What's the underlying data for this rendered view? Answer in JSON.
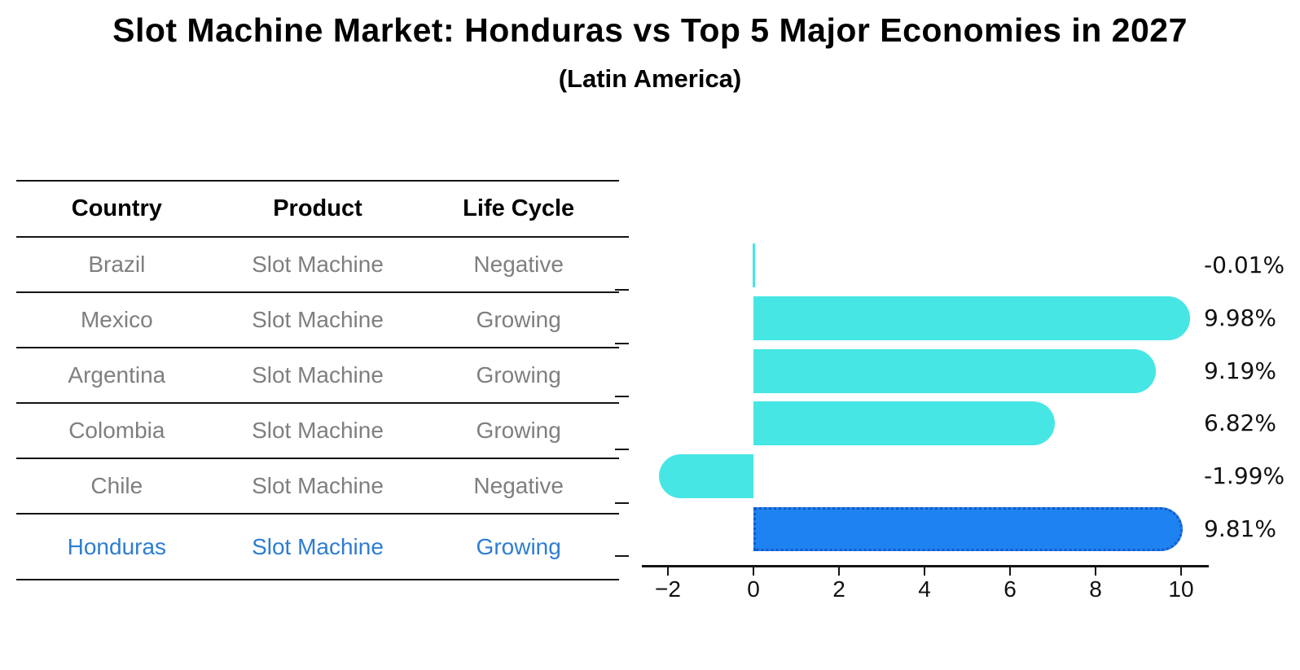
{
  "title": "Slot Machine Market: Honduras vs Top 5 Major Economies in 2027",
  "subtitle": "(Latin America)",
  "table": {
    "headers": [
      "Country",
      "Product",
      "Life Cycle"
    ],
    "rows": [
      {
        "country": "Brazil",
        "product": "Slot Machine",
        "life_cycle": "Negative",
        "highlight": false
      },
      {
        "country": "Mexico",
        "product": "Slot Machine",
        "life_cycle": "Growing",
        "highlight": false
      },
      {
        "country": "Argentina",
        "product": "Slot Machine",
        "life_cycle": "Growing",
        "highlight": false
      },
      {
        "country": "Colombia",
        "product": "Slot Machine",
        "life_cycle": "Growing",
        "highlight": false
      },
      {
        "country": "Chile",
        "product": "Slot Machine",
        "life_cycle": "Negative",
        "highlight": false
      },
      {
        "country": "Honduras",
        "product": "Slot Machine",
        "life_cycle": "Growing",
        "highlight": true
      }
    ]
  },
  "chart_data": {
    "type": "bar",
    "orientation": "horizontal",
    "categories": [
      "Brazil",
      "Mexico",
      "Argentina",
      "Colombia",
      "Chile",
      "Honduras"
    ],
    "values": [
      -0.01,
      9.98,
      9.19,
      6.82,
      -1.99,
      9.81
    ],
    "value_labels": [
      "-0.01%",
      "9.98%",
      "9.19%",
      "6.82%",
      "-1.99%",
      "9.81%"
    ],
    "highlight_index": 5,
    "xtick_labels": [
      "−2",
      "0",
      "2",
      "4",
      "6",
      "8",
      "10"
    ],
    "xtick_values": [
      -2,
      0,
      2,
      4,
      6,
      8,
      10
    ],
    "xlim": [
      -2.6,
      10.6
    ],
    "grid": false,
    "legend": null,
    "xlabel": "",
    "ylabel": ""
  },
  "colors": {
    "bar": "#46e6e4",
    "highlight_bar": "#1e82f0",
    "highlight_bar_edge": "#145ac8",
    "highlight_text": "#2d7dd2",
    "table_text": "#7f7f7f",
    "axis": "#141414"
  }
}
